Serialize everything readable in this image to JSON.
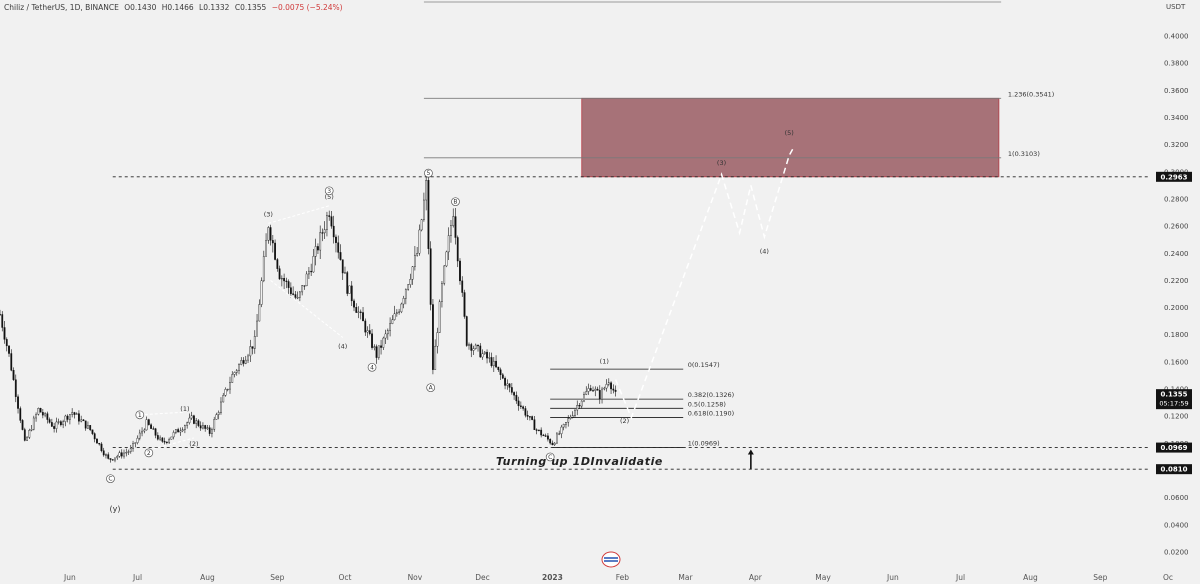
{
  "header": {
    "symbol": "Chiliz / TetherUS, 1D, BINANCE",
    "open": "O0.1430",
    "high": "H0.1466",
    "low": "L0.1332",
    "close": "C0.1355",
    "change": "−0.0075 (−5.24%)"
  },
  "colors": {
    "background": "#f1f1f1",
    "candle": "#111111",
    "target_zone": "#9a5c63",
    "target_zone_border": "#b53b45",
    "price_tag": "#131313"
  },
  "chart_data": {
    "type": "candlestick",
    "y_unit": "USDT",
    "y_ticks": [
      "0.0200",
      "0.0400",
      "0.0600",
      "0.0800",
      "0.1000",
      "0.1200",
      "0.1400",
      "0.1600",
      "0.1800",
      "0.2000",
      "0.2200",
      "0.2400",
      "0.2600",
      "0.2800",
      "0.3000",
      "0.3200",
      "0.3400",
      "0.3600",
      "0.3800",
      "0.4000"
    ],
    "y_tick_values": [
      0.02,
      0.04,
      0.06,
      0.08,
      0.1,
      0.12,
      0.14,
      0.16,
      0.18,
      0.2,
      0.22,
      0.24,
      0.26,
      0.28,
      0.3,
      0.32,
      0.34,
      0.36,
      0.38,
      0.4
    ],
    "x_ticks": [
      "Jun",
      "Jul",
      "Aug",
      "Sep",
      "Oct",
      "Nov",
      "Dec",
      "2023",
      "Feb",
      "Mar",
      "Apr",
      "May",
      "Jun",
      "Jul",
      "Aug",
      "Sep",
      "Oc"
    ],
    "ylim": [
      0.005,
      0.425
    ],
    "price_path": [
      {
        "date": "2022-05-01",
        "price": 0.195
      },
      {
        "date": "2022-05-05",
        "price": 0.165
      },
      {
        "date": "2022-05-12",
        "price": 0.1
      },
      {
        "date": "2022-05-18",
        "price": 0.125
      },
      {
        "date": "2022-05-25",
        "price": 0.112
      },
      {
        "date": "2022-06-02",
        "price": 0.123
      },
      {
        "date": "2022-06-10",
        "price": 0.11
      },
      {
        "date": "2022-06-18",
        "price": 0.088
      },
      {
        "date": "2022-06-28",
        "price": 0.095
      },
      {
        "date": "2022-07-05",
        "price": 0.115
      },
      {
        "date": "2022-07-12",
        "price": 0.1
      },
      {
        "date": "2022-07-25",
        "price": 0.118
      },
      {
        "date": "2022-08-02",
        "price": 0.108
      },
      {
        "date": "2022-08-12",
        "price": 0.15
      },
      {
        "date": "2022-08-22",
        "price": 0.175
      },
      {
        "date": "2022-08-28",
        "price": 0.262
      },
      {
        "date": "2022-09-02",
        "price": 0.225
      },
      {
        "date": "2022-09-10",
        "price": 0.205
      },
      {
        "date": "2022-09-18",
        "price": 0.24
      },
      {
        "date": "2022-09-24",
        "price": 0.272
      },
      {
        "date": "2022-10-02",
        "price": 0.215
      },
      {
        "date": "2022-10-10",
        "price": 0.185
      },
      {
        "date": "2022-10-15",
        "price": 0.165
      },
      {
        "date": "2022-10-25",
        "price": 0.2
      },
      {
        "date": "2022-11-02",
        "price": 0.24
      },
      {
        "date": "2022-11-06",
        "price": 0.29
      },
      {
        "date": "2022-11-09",
        "price": 0.155
      },
      {
        "date": "2022-11-13",
        "price": 0.215
      },
      {
        "date": "2022-11-18",
        "price": 0.272
      },
      {
        "date": "2022-11-24",
        "price": 0.175
      },
      {
        "date": "2022-12-05",
        "price": 0.16
      },
      {
        "date": "2022-12-15",
        "price": 0.135
      },
      {
        "date": "2022-12-25",
        "price": 0.11
      },
      {
        "date": "2023-01-01",
        "price": 0.1
      },
      {
        "date": "2023-01-06",
        "price": 0.112
      },
      {
        "date": "2023-01-12",
        "price": 0.128
      },
      {
        "date": "2023-01-18",
        "price": 0.142
      },
      {
        "date": "2023-01-22",
        "price": 0.135
      },
      {
        "date": "2023-01-26",
        "price": 0.147
      },
      {
        "date": "2023-01-29",
        "price": 0.1355
      }
    ],
    "projection_path": [
      {
        "date": "2023-01-29",
        "price": 0.147
      },
      {
        "date": "2023-02-05",
        "price": 0.119
      },
      {
        "date": "2023-03-17",
        "price": 0.298
      },
      {
        "date": "2023-03-25",
        "price": 0.255
      },
      {
        "date": "2023-03-30",
        "price": 0.29
      },
      {
        "date": "2023-04-05",
        "price": 0.252
      },
      {
        "date": "2023-04-16",
        "price": 0.312
      },
      {
        "date": "2023-04-18",
        "price": 0.318
      }
    ],
    "target_zone": {
      "date_from": "2023-01-14",
      "date_to": "2023-07-18",
      "price_low": 0.2963,
      "price_high": 0.3541
    },
    "fib_levels": [
      {
        "label": "0(0.1547)",
        "value": 0.1547
      },
      {
        "label": "0.382(0.1326)",
        "value": 0.1326
      },
      {
        "label": "0.5(0.1258)",
        "value": 0.1258
      },
      {
        "label": "0.618(0.1190)",
        "value": 0.119
      },
      {
        "label": "1(0.0969)",
        "value": 0.0969
      }
    ],
    "upper_fibs": [
      {
        "label": "1.236(0.3541)",
        "value": 0.3541
      },
      {
        "label": "1(0.3103)",
        "value": 0.3103
      }
    ],
    "horizontal_lines": [
      {
        "value": 0.2963,
        "label": "0.2963"
      },
      {
        "value": 0.0969,
        "label": "0.0969"
      },
      {
        "value": 0.081,
        "label": "0.0810"
      }
    ],
    "current_price": {
      "value": 0.1355,
      "label": "0.1355",
      "countdown": "05:17:59"
    },
    "annotation": "Turning up 1DInvalidatie",
    "wave_labels": [
      {
        "text": "(3)",
        "date": "2022-08-28",
        "price": 0.267
      },
      {
        "text": "(4)",
        "date": "2022-09-30",
        "price": 0.17
      },
      {
        "text": "(5)",
        "date": "2022-09-24",
        "price": 0.28
      },
      {
        "text": "(1)",
        "date": "2022-07-22",
        "price": 0.124
      },
      {
        "text": "(2)",
        "date": "2022-07-26",
        "price": 0.098
      },
      {
        "text": "(3)",
        "date": "2023-03-17",
        "price": 0.305
      },
      {
        "text": "(4)",
        "date": "2023-04-05",
        "price": 0.24
      },
      {
        "text": "(5)",
        "date": "2023-04-16",
        "price": 0.327
      },
      {
        "text": "(1)",
        "date": "2023-01-24",
        "price": 0.159
      },
      {
        "text": "(2)",
        "date": "2023-02-02",
        "price": 0.115
      },
      {
        "text": "(y)",
        "date": "2022-06-21",
        "price": 0.05
      }
    ],
    "circled_labels": [
      {
        "text": "1",
        "date": "2022-07-02",
        "price": 0.121
      },
      {
        "text": "2",
        "date": "2022-07-06",
        "price": 0.093
      },
      {
        "text": "C",
        "date": "2022-06-19",
        "price": 0.074
      },
      {
        "text": "3",
        "date": "2022-09-24",
        "price": 0.286
      },
      {
        "text": "4",
        "date": "2022-10-13",
        "price": 0.156
      },
      {
        "text": "5",
        "date": "2022-11-07",
        "price": 0.299
      },
      {
        "text": "A",
        "date": "2022-11-08",
        "price": 0.141
      },
      {
        "text": "B",
        "date": "2022-11-19",
        "price": 0.278
      },
      {
        "text": "C",
        "date": "2022-12-31",
        "price": 0.09
      }
    ]
  }
}
